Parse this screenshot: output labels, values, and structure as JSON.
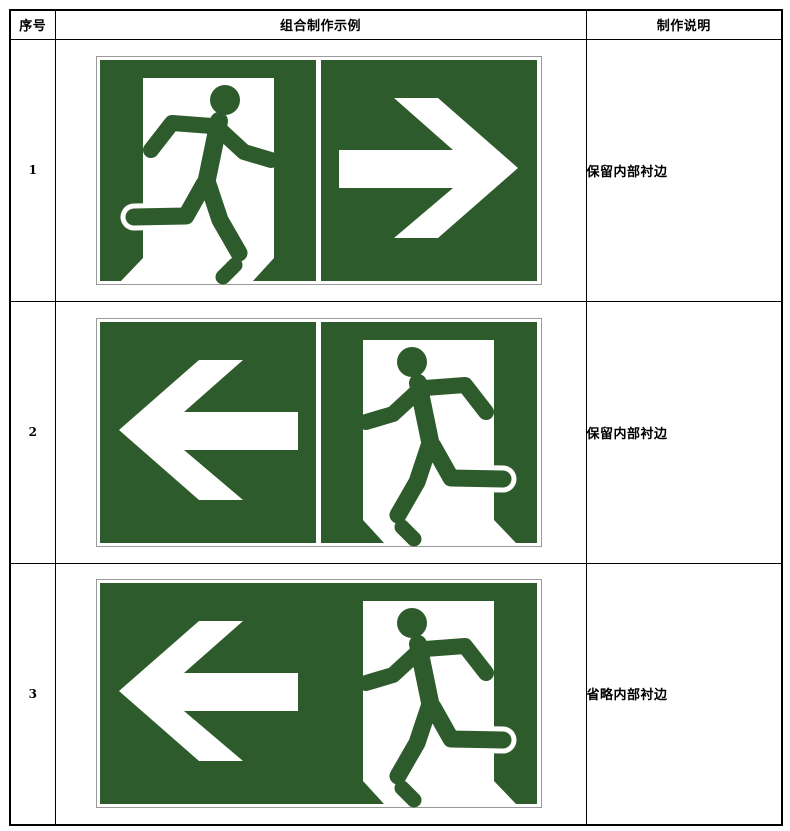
{
  "table": {
    "headers": {
      "index": "序号",
      "example": "组合制作示例",
      "note": "制作说明"
    },
    "rows": [
      {
        "index": "1",
        "note": "保留内部衬边",
        "sign": {
          "panels": [
            "running-man-right-exit-icon",
            "arrow-right-icon"
          ],
          "inner_lining": true
        }
      },
      {
        "index": "2",
        "note": "保留内部衬边",
        "sign": {
          "panels": [
            "arrow-left-icon",
            "running-man-left-exit-icon"
          ],
          "inner_lining": true
        }
      },
      {
        "index": "3",
        "note": "省略内部衬边",
        "sign": {
          "panels": [
            "arrow-left-icon",
            "running-man-left-exit-icon"
          ],
          "inner_lining": false
        }
      }
    ]
  },
  "colors": {
    "sign_green": "#2e5b2b",
    "sign_symbol": "#ffffff",
    "sign_frame": "#9a9a9a",
    "table_border": "#000000"
  }
}
